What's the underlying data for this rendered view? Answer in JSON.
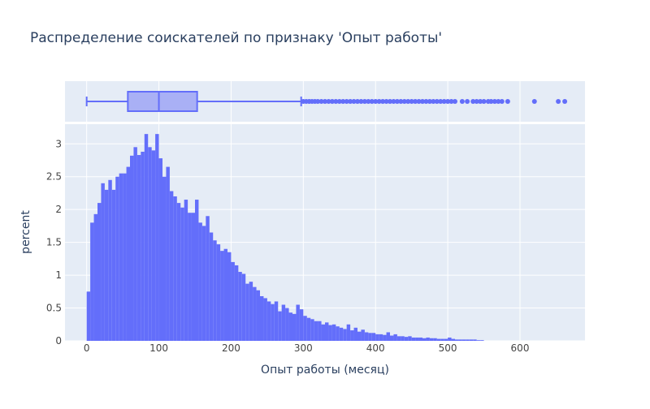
{
  "chart_data": {
    "title": "Распределение соискателей по признаку 'Опыт работы'",
    "xlabel": "Опыт работы (месяц)",
    "ylabel": "percent",
    "type": "histogram",
    "xlim": [
      -30,
      690
    ],
    "ylim": [
      0,
      3.3
    ],
    "x_ticks": [
      0,
      100,
      200,
      300,
      400,
      500,
      600
    ],
    "y_ticks": [
      0,
      0.5,
      1,
      1.5,
      2,
      2.5,
      3
    ],
    "y_tick_labels": [
      "0",
      "0.5",
      "1",
      "1.5",
      "2",
      "2.5",
      "3"
    ],
    "bin_start": 0,
    "bin_width": 5,
    "histogram_percent": [
      0.75,
      1.8,
      1.93,
      2.1,
      2.4,
      2.3,
      2.45,
      2.3,
      2.5,
      2.55,
      2.55,
      2.65,
      2.82,
      2.95,
      2.83,
      2.88,
      3.15,
      2.95,
      2.9,
      3.15,
      2.78,
      2.5,
      2.65,
      2.28,
      2.2,
      2.1,
      2.03,
      2.15,
      1.95,
      1.95,
      2.15,
      1.8,
      1.75,
      1.9,
      1.65,
      1.53,
      1.47,
      1.37,
      1.4,
      1.35,
      1.2,
      1.15,
      1.05,
      1.02,
      0.87,
      0.9,
      0.82,
      0.77,
      0.68,
      0.65,
      0.6,
      0.56,
      0.6,
      0.45,
      0.55,
      0.5,
      0.43,
      0.41,
      0.55,
      0.48,
      0.38,
      0.35,
      0.33,
      0.3,
      0.3,
      0.25,
      0.28,
      0.24,
      0.25,
      0.22,
      0.2,
      0.18,
      0.25,
      0.16,
      0.2,
      0.14,
      0.17,
      0.13,
      0.12,
      0.12,
      0.1,
      0.1,
      0.09,
      0.13,
      0.08,
      0.1,
      0.07,
      0.07,
      0.06,
      0.07,
      0.05,
      0.05,
      0.05,
      0.04,
      0.05,
      0.04,
      0.04,
      0.03,
      0.03,
      0.03,
      0.05,
      0.03,
      0.02,
      0.02,
      0.02,
      0.02,
      0.02,
      0.02,
      0.01,
      0.01
    ],
    "box": {
      "min": 0,
      "q1": 57,
      "median": 100,
      "q3": 153,
      "upper_fence": 297,
      "outliers": [
        300,
        304,
        308,
        312,
        316,
        320,
        325,
        330,
        335,
        340,
        345,
        350,
        355,
        360,
        365,
        370,
        375,
        380,
        385,
        390,
        395,
        400,
        405,
        410,
        415,
        420,
        425,
        430,
        435,
        440,
        445,
        450,
        455,
        460,
        465,
        470,
        475,
        480,
        485,
        490,
        495,
        500,
        505,
        510,
        520,
        527,
        535,
        540,
        545,
        550,
        556,
        560,
        565,
        570,
        575,
        583,
        620,
        653,
        662
      ]
    },
    "colors": {
      "bar": "#636efa",
      "box_fill": "#a9b0f5",
      "box_line": "#636efa",
      "plot_bg": "#e5ecf6",
      "grid": "#ffffff",
      "text": "#2a3f5f",
      "tick_text": "#444444"
    }
  }
}
